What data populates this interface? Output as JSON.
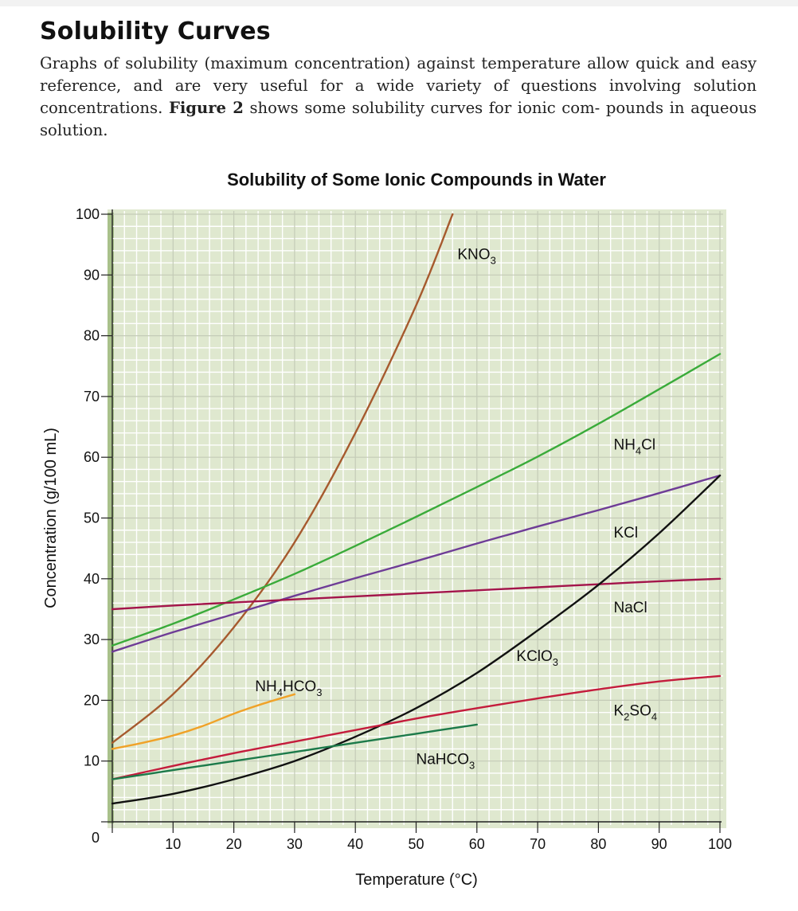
{
  "section": {
    "title": "Solubility Curves",
    "paragraph_before": "Graphs of solubility (maximum concentration) against temperature allow quick and easy reference, and are very useful for a wide variety of questions involving solution concentrations.",
    "figure_ref": "Figure 2",
    "paragraph_after": "shows some solubility curves for ionic com- pounds in aqueous solution."
  },
  "colors": {
    "plot_bg": "#dfe8cf",
    "grid_minor": "#ffffff",
    "grid_major": "#c4cbb7",
    "left_strip": "#a9c18b",
    "KNO3": "#a65a2e",
    "NH4Cl": "#3aab3a",
    "KCl": "#6e3c96",
    "NaCl": "#a3144a",
    "KClO3": "#111111",
    "K2SO4": "#c41c3c",
    "NH4HCO3": "#f0a228",
    "NaHCO3": "#1c7a4a"
  },
  "chart_data": {
    "type": "line",
    "title": "Solubility of Some Ionic Compounds in Water",
    "xlabel": "Temperature (°C)",
    "ylabel": "Concentration (g/100 mL)",
    "xlim": [
      0,
      100
    ],
    "ylim": [
      0,
      100
    ],
    "x_ticks": [
      "10",
      "20",
      "30",
      "40",
      "50",
      "60",
      "70",
      "80",
      "90",
      "100"
    ],
    "y_ticks": [
      "10",
      "20",
      "30",
      "40",
      "50",
      "60",
      "70",
      "80",
      "90",
      "100"
    ],
    "origin_label": "0",
    "grid": true,
    "series": [
      {
        "name": "KNO3",
        "label": "KNO",
        "sub": "3",
        "tail": "",
        "x": [
          0,
          10,
          20,
          30,
          40,
          50,
          56
        ],
        "y": [
          13,
          21,
          32,
          46,
          64,
          85,
          100
        ]
      },
      {
        "name": "NH4Cl",
        "label": "NH",
        "sub": "4",
        "tail": "Cl",
        "x": [
          0,
          10,
          20,
          30,
          40,
          50,
          60,
          70,
          80,
          90,
          100
        ],
        "y": [
          29,
          32.6,
          36.6,
          40.8,
          45.4,
          50.2,
          55.1,
          60.1,
          65.5,
          71.2,
          77
        ]
      },
      {
        "name": "KCl",
        "label": "KCl",
        "sub": "",
        "tail": "",
        "x": [
          0,
          10,
          20,
          30,
          40,
          50,
          60,
          70,
          80,
          90,
          100
        ],
        "y": [
          28,
          31.2,
          34.2,
          37.2,
          40.1,
          42.9,
          45.8,
          48.6,
          51.3,
          54.1,
          57
        ]
      },
      {
        "name": "NaCl",
        "label": "NaCl",
        "sub": "",
        "tail": "",
        "x": [
          0,
          10,
          20,
          30,
          40,
          50,
          60,
          70,
          80,
          90,
          100
        ],
        "y": [
          35,
          35.6,
          36.1,
          36.6,
          37.1,
          37.6,
          38.1,
          38.6,
          39.1,
          39.6,
          40
        ]
      },
      {
        "name": "KClO3",
        "label": "KClO",
        "sub": "3",
        "tail": "",
        "x": [
          0,
          10,
          20,
          30,
          40,
          50,
          60,
          70,
          80,
          90,
          100
        ],
        "y": [
          3,
          4.6,
          7,
          10,
          14,
          18.7,
          24.5,
          31.5,
          39,
          47.5,
          57
        ]
      },
      {
        "name": "K2SO4",
        "label": "K",
        "sub": "2",
        "tail": "SO",
        "sub2": "4",
        "x": [
          0,
          10,
          20,
          30,
          40,
          50,
          60,
          70,
          80,
          90,
          100
        ],
        "y": [
          7,
          9.2,
          11.3,
          13.2,
          15.1,
          17,
          18.7,
          20.3,
          21.8,
          23.1,
          24
        ]
      },
      {
        "name": "NH4HCO3",
        "label": "NH",
        "sub": "4",
        "tail": "HCO",
        "sub2": "3",
        "x": [
          0,
          5,
          10,
          15,
          20,
          25,
          30
        ],
        "y": [
          12,
          13,
          14.2,
          15.8,
          17.8,
          19.5,
          21
        ]
      },
      {
        "name": "NaHCO3",
        "label": "NaHCO",
        "sub": "3",
        "tail": "",
        "x": [
          0,
          10,
          20,
          30,
          40,
          50,
          60
        ],
        "y": [
          7,
          8.5,
          10,
          11.5,
          13,
          14.5,
          16
        ]
      }
    ]
  }
}
